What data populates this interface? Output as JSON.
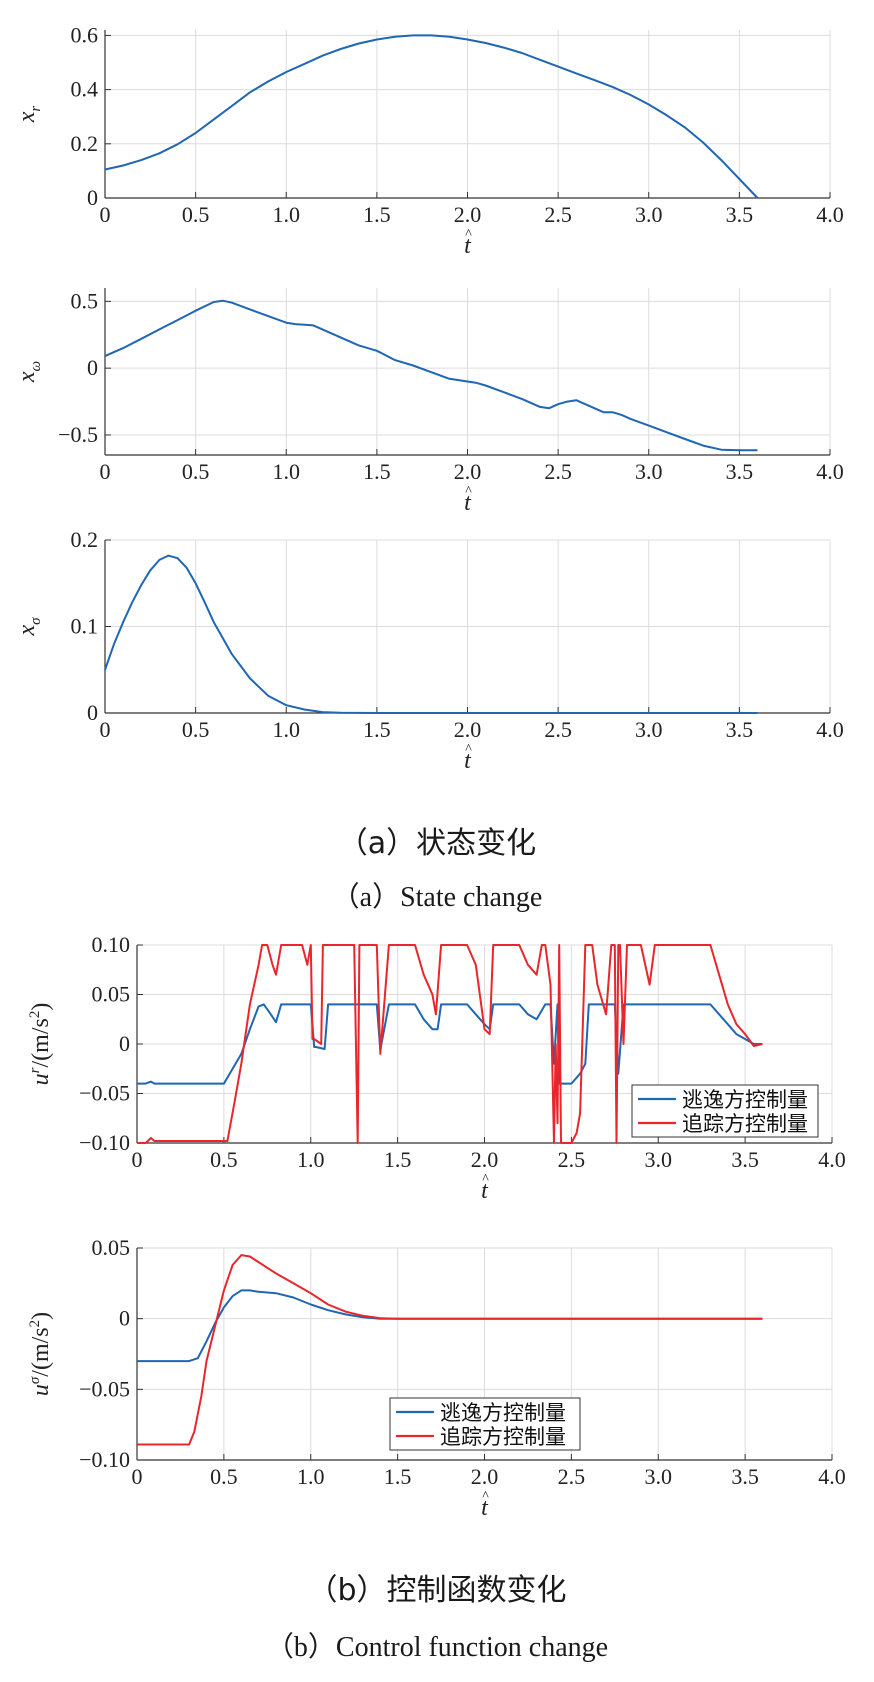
{
  "captions": {
    "a_zh": "（a）状态变化",
    "a_en": "（a）State change",
    "b_zh": "（b）控制函数变化",
    "b_en": "（b）Control function change"
  },
  "colors": {
    "blue": "#1f66b3",
    "red": "#e8262b",
    "grid": "#dcdcdc",
    "axis": "#333333"
  },
  "chart_data": [
    {
      "id": "xr",
      "type": "line",
      "ylabel": "x_r",
      "xlabel": "t̂",
      "xlim": [
        0,
        4.0
      ],
      "ylim": [
        0,
        0.62
      ],
      "xticks": [
        0,
        0.5,
        1.0,
        1.5,
        2.0,
        2.5,
        3.0,
        3.5,
        4.0
      ],
      "xtick_labels": [
        "0",
        "0.5",
        "1.0",
        "1.5",
        "2.0",
        "2.5",
        "3.0",
        "3.5",
        "4.0"
      ],
      "yticks": [
        0,
        0.2,
        0.4,
        0.6
      ],
      "ytick_labels": [
        "0",
        "0.2",
        "0.4",
        "0.6"
      ],
      "grid": true,
      "series": [
        {
          "color": "#1f66b3",
          "x": [
            0,
            0.1,
            0.2,
            0.3,
            0.4,
            0.5,
            0.6,
            0.7,
            0.8,
            0.9,
            1.0,
            1.1,
            1.2,
            1.3,
            1.4,
            1.5,
            1.6,
            1.7,
            1.8,
            1.9,
            2.0,
            2.1,
            2.2,
            2.3,
            2.4,
            2.5,
            2.6,
            2.7,
            2.8,
            2.9,
            3.0,
            3.1,
            3.2,
            3.3,
            3.4,
            3.5,
            3.6
          ],
          "y": [
            0.105,
            0.12,
            0.14,
            0.165,
            0.198,
            0.24,
            0.29,
            0.34,
            0.39,
            0.43,
            0.465,
            0.495,
            0.525,
            0.55,
            0.57,
            0.585,
            0.595,
            0.6,
            0.6,
            0.595,
            0.585,
            0.572,
            0.555,
            0.535,
            0.51,
            0.485,
            0.46,
            0.435,
            0.41,
            0.38,
            0.345,
            0.305,
            0.26,
            0.205,
            0.14,
            0.07,
            0.0
          ]
        }
      ]
    },
    {
      "id": "xw",
      "type": "line",
      "ylabel": "x_ω",
      "xlabel": "t̂",
      "xlim": [
        0,
        4.0
      ],
      "ylim": [
        -0.65,
        0.6
      ],
      "xticks": [
        0,
        0.5,
        1.0,
        1.5,
        2.0,
        2.5,
        3.0,
        3.5,
        4.0
      ],
      "xtick_labels": [
        "0",
        "0.5",
        "1.0",
        "1.5",
        "2.0",
        "2.5",
        "3.0",
        "3.5",
        "4.0"
      ],
      "yticks": [
        -0.5,
        0,
        0.5
      ],
      "ytick_labels": [
        "−0.5",
        "0",
        "0.5"
      ],
      "grid": true,
      "series": [
        {
          "color": "#1f66b3",
          "x": [
            0,
            0.1,
            0.2,
            0.3,
            0.4,
            0.5,
            0.6,
            0.65,
            0.7,
            0.8,
            0.9,
            1.0,
            1.05,
            1.15,
            1.2,
            1.3,
            1.4,
            1.5,
            1.6,
            1.7,
            1.8,
            1.9,
            2.0,
            2.05,
            2.1,
            2.2,
            2.3,
            2.4,
            2.45,
            2.5,
            2.55,
            2.6,
            2.65,
            2.7,
            2.75,
            2.8,
            2.85,
            2.9,
            3.0,
            3.1,
            3.2,
            3.3,
            3.4,
            3.5,
            3.6
          ],
          "y": [
            0.09,
            0.15,
            0.22,
            0.29,
            0.36,
            0.43,
            0.495,
            0.505,
            0.49,
            0.44,
            0.39,
            0.34,
            0.33,
            0.32,
            0.29,
            0.23,
            0.17,
            0.13,
            0.06,
            0.02,
            -0.03,
            -0.08,
            -0.1,
            -0.11,
            -0.13,
            -0.18,
            -0.23,
            -0.29,
            -0.3,
            -0.27,
            -0.25,
            -0.24,
            -0.27,
            -0.3,
            -0.33,
            -0.33,
            -0.35,
            -0.38,
            -0.43,
            -0.48,
            -0.53,
            -0.58,
            -0.61,
            -0.615,
            -0.615
          ]
        }
      ]
    },
    {
      "id": "xs",
      "type": "line",
      "ylabel": "x_σ",
      "xlabel": "t̂",
      "xlim": [
        0,
        4.0
      ],
      "ylim": [
        0,
        0.2
      ],
      "xticks": [
        0,
        0.5,
        1.0,
        1.5,
        2.0,
        2.5,
        3.0,
        3.5,
        4.0
      ],
      "xtick_labels": [
        "0",
        "0.5",
        "1.0",
        "1.5",
        "2.0",
        "2.5",
        "3.0",
        "3.5",
        "4.0"
      ],
      "yticks": [
        0,
        0.1,
        0.2
      ],
      "ytick_labels": [
        "0",
        "0.1",
        "0.2"
      ],
      "grid": true,
      "series": [
        {
          "color": "#1f66b3",
          "x": [
            0,
            0.05,
            0.1,
            0.15,
            0.2,
            0.25,
            0.3,
            0.35,
            0.4,
            0.45,
            0.5,
            0.55,
            0.6,
            0.7,
            0.8,
            0.9,
            1.0,
            1.1,
            1.2,
            1.3,
            1.4,
            1.5,
            2.0,
            2.5,
            3.0,
            3.5,
            3.6
          ],
          "y": [
            0.05,
            0.08,
            0.105,
            0.128,
            0.148,
            0.165,
            0.177,
            0.182,
            0.179,
            0.168,
            0.15,
            0.128,
            0.105,
            0.068,
            0.04,
            0.02,
            0.009,
            0.004,
            0.001,
            0.0003,
            0.0001,
            0,
            0,
            0,
            0,
            0,
            0
          ]
        }
      ]
    },
    {
      "id": "ur",
      "type": "line",
      "ylabel": "u^r/(m/s^2)",
      "xlabel": "t̂",
      "xlim": [
        0,
        4.0
      ],
      "ylim": [
        -0.1,
        0.1
      ],
      "xticks": [
        0,
        0.5,
        1.0,
        1.5,
        2.0,
        2.5,
        3.0,
        3.5,
        4.0
      ],
      "xtick_labels": [
        "0",
        "0.5",
        "1.0",
        "1.5",
        "2.0",
        "2.5",
        "3.0",
        "3.5",
        "4.0"
      ],
      "yticks": [
        -0.1,
        -0.05,
        0,
        0.05,
        0.1
      ],
      "ytick_labels": [
        "−0.10",
        "−0.05",
        "0",
        "0.05",
        "0.10"
      ],
      "grid": true,
      "legend": {
        "position": "bottom-right",
        "entries": [
          "逃逸方控制量",
          "追踪方控制量"
        ]
      },
      "series": [
        {
          "name": "逃逸方控制量",
          "color": "#1f66b3",
          "x": [
            0,
            0.05,
            0.08,
            0.1,
            0.2,
            0.3,
            0.4,
            0.5,
            0.55,
            0.6,
            0.65,
            0.7,
            0.73,
            0.77,
            0.8,
            0.83,
            0.87,
            0.9,
            0.95,
            1.0,
            1.02,
            1.03,
            1.08,
            1.1,
            1.15,
            1.2,
            1.3,
            1.35,
            1.38,
            1.4,
            1.45,
            1.5,
            1.55,
            1.6,
            1.65,
            1.7,
            1.73,
            1.75,
            1.8,
            1.9,
            1.95,
            2.0,
            2.03,
            2.05,
            2.1,
            2.2,
            2.25,
            2.3,
            2.35,
            2.38,
            2.4,
            2.42,
            2.43,
            2.45,
            2.5,
            2.55,
            2.58,
            2.6,
            2.65,
            2.7,
            2.75,
            2.77,
            2.8,
            2.85,
            2.9,
            2.95,
            3.0,
            3.1,
            3.2,
            3.3,
            3.35,
            3.4,
            3.45,
            3.5,
            3.55,
            3.6
          ],
          "y": [
            -0.04,
            -0.04,
            -0.038,
            -0.04,
            -0.04,
            -0.04,
            -0.04,
            -0.04,
            -0.025,
            -0.01,
            0.015,
            0.038,
            0.04,
            0.03,
            0.022,
            0.04,
            0.04,
            0.04,
            0.04,
            0.04,
            -0.003,
            -0.003,
            -0.005,
            0.04,
            0.04,
            0.04,
            0.04,
            0.04,
            0.04,
            -0.006,
            0.04,
            0.04,
            0.04,
            0.04,
            0.025,
            0.015,
            0.015,
            0.04,
            0.04,
            0.04,
            0.03,
            0.02,
            0.015,
            0.04,
            0.04,
            0.04,
            0.03,
            0.025,
            0.04,
            0.04,
            -0.02,
            0.04,
            -0.04,
            -0.04,
            -0.04,
            -0.03,
            -0.02,
            0.04,
            0.04,
            0.04,
            0.04,
            -0.03,
            0.04,
            0.04,
            0.04,
            0.04,
            0.04,
            0.04,
            0.04,
            0.04,
            0.03,
            0.02,
            0.01,
            0.005,
            0,
            0
          ]
        },
        {
          "name": "追踪方控制量",
          "color": "#e8262b",
          "x": [
            0,
            0.05,
            0.08,
            0.1,
            0.2,
            0.3,
            0.4,
            0.52,
            0.56,
            0.6,
            0.65,
            0.7,
            0.72,
            0.75,
            0.78,
            0.8,
            0.83,
            0.87,
            0.9,
            0.95,
            0.98,
            1.0,
            1.01,
            1.02,
            1.06,
            1.07,
            1.1,
            1.15,
            1.2,
            1.25,
            1.27,
            1.28,
            1.3,
            1.35,
            1.38,
            1.4,
            1.45,
            1.5,
            1.55,
            1.6,
            1.65,
            1.7,
            1.72,
            1.75,
            1.8,
            1.9,
            1.95,
            2.0,
            2.03,
            2.05,
            2.1,
            2.2,
            2.25,
            2.3,
            2.33,
            2.35,
            2.38,
            2.4,
            2.41,
            2.42,
            2.43,
            2.44,
            2.45,
            2.47,
            2.5,
            2.53,
            2.55,
            2.58,
            2.6,
            2.62,
            2.65,
            2.7,
            2.73,
            2.75,
            2.76,
            2.77,
            2.78,
            2.8,
            2.82,
            2.83,
            2.85,
            2.88,
            2.9,
            2.95,
            2.98,
            3.0,
            3.1,
            3.2,
            3.3,
            3.35,
            3.4,
            3.45,
            3.5,
            3.55,
            3.6
          ],
          "y": [
            -0.1,
            -0.1,
            -0.095,
            -0.098,
            -0.098,
            -0.098,
            -0.098,
            -0.098,
            -0.06,
            -0.02,
            0.04,
            0.08,
            0.1,
            0.1,
            0.08,
            0.07,
            0.1,
            0.1,
            0.1,
            0.1,
            0.08,
            0.1,
            0.005,
            0.005,
            0.0,
            0.1,
            0.1,
            0.1,
            0.1,
            0.1,
            -0.1,
            0.1,
            0.1,
            0.1,
            0.1,
            -0.01,
            0.1,
            0.1,
            0.1,
            0.1,
            0.07,
            0.05,
            0.03,
            0.1,
            0.1,
            0.1,
            0.08,
            0.015,
            0.01,
            0.1,
            0.1,
            0.1,
            0.08,
            0.07,
            0.1,
            0.1,
            0.06,
            -0.1,
            0.0,
            -0.08,
            0.1,
            -0.1,
            -0.1,
            -0.1,
            -0.1,
            -0.09,
            -0.07,
            0.1,
            0.1,
            0.1,
            0.06,
            0.03,
            0.1,
            0.1,
            -0.1,
            0.1,
            0.1,
            0.0,
            0.1,
            0.1,
            0.1,
            0.1,
            0.1,
            0.06,
            0.1,
            0.1,
            0.1,
            0.1,
            0.1,
            0.07,
            0.04,
            0.02,
            0.01,
            -0.002,
            0
          ]
        }
      ]
    },
    {
      "id": "us",
      "type": "line",
      "ylabel": "u^σ/(m/s^2)",
      "xlabel": "t̂",
      "xlim": [
        0,
        4.0
      ],
      "ylim": [
        -0.1,
        0.05
      ],
      "xticks": [
        0,
        0.5,
        1.0,
        1.5,
        2.0,
        2.5,
        3.0,
        3.5,
        4.0
      ],
      "xtick_labels": [
        "0",
        "0.5",
        "1.0",
        "1.5",
        "2.0",
        "2.5",
        "3.0",
        "3.5",
        "4.0"
      ],
      "yticks": [
        -0.1,
        -0.05,
        0,
        0.05
      ],
      "ytick_labels": [
        "−0.10",
        "−0.05",
        "0",
        "0.05"
      ],
      "grid": true,
      "legend": {
        "position": "bottom-center",
        "entries": [
          "逃逸方控制量",
          "追踪方控制量"
        ]
      },
      "series": [
        {
          "name": "逃逸方控制量",
          "color": "#1f66b3",
          "x": [
            0,
            0.1,
            0.2,
            0.3,
            0.35,
            0.4,
            0.45,
            0.5,
            0.55,
            0.6,
            0.65,
            0.7,
            0.8,
            0.9,
            1.0,
            1.1,
            1.2,
            1.3,
            1.4,
            1.5,
            2.0,
            2.5,
            3.0,
            3.5,
            3.6
          ],
          "y": [
            -0.03,
            -0.03,
            -0.03,
            -0.03,
            -0.028,
            -0.016,
            -0.003,
            0.008,
            0.016,
            0.02,
            0.02,
            0.019,
            0.018,
            0.015,
            0.01,
            0.006,
            0.003,
            0.001,
            0,
            0,
            0,
            0,
            0,
            0,
            0
          ]
        },
        {
          "name": "追踪方控制量",
          "color": "#e8262b",
          "x": [
            0,
            0.1,
            0.2,
            0.3,
            0.33,
            0.37,
            0.4,
            0.45,
            0.5,
            0.55,
            0.6,
            0.65,
            0.7,
            0.75,
            0.8,
            0.9,
            1.0,
            1.1,
            1.2,
            1.3,
            1.4,
            1.5,
            2.0,
            2.5,
            3.0,
            3.5,
            3.6
          ],
          "y": [
            -0.089,
            -0.089,
            -0.089,
            -0.089,
            -0.08,
            -0.055,
            -0.03,
            -0.005,
            0.02,
            0.038,
            0.045,
            0.044,
            0.04,
            0.036,
            0.032,
            0.025,
            0.018,
            0.01,
            0.005,
            0.002,
            0.0003,
            0,
            0,
            0,
            0,
            0,
            0
          ]
        }
      ]
    }
  ]
}
